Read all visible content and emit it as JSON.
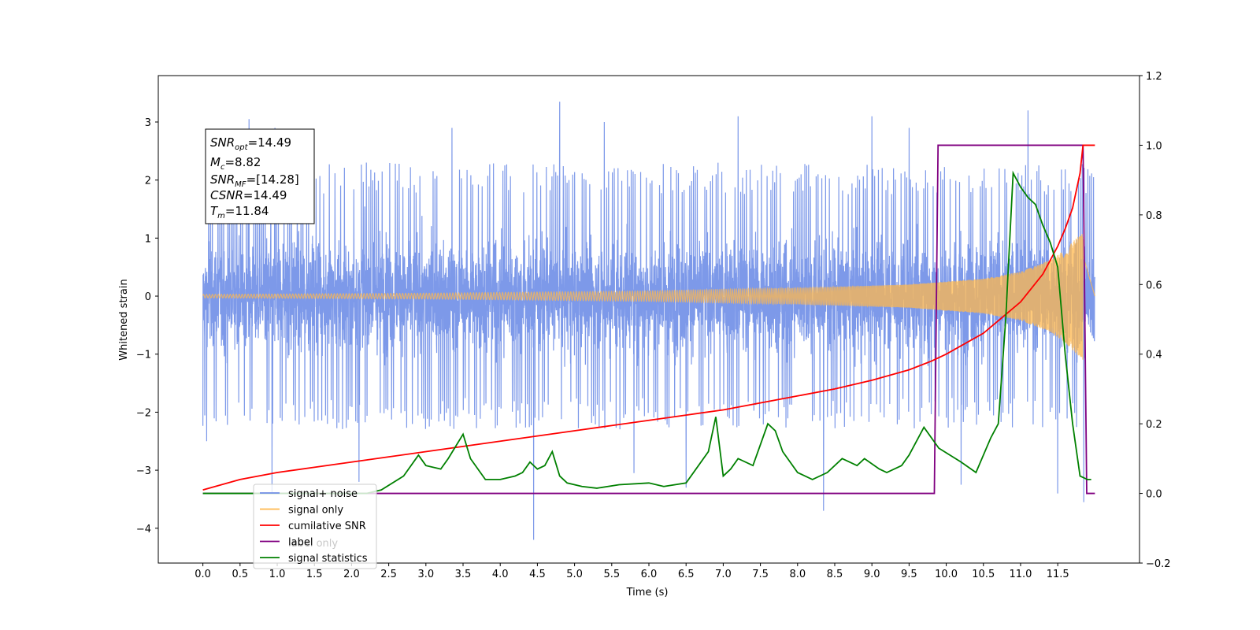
{
  "chart_data": {
    "type": "line",
    "xlabel": "Time (s)",
    "ylabel": "Whitened strain",
    "xlim": [
      -0.6,
      12.6
    ],
    "ylim": [
      -4.6,
      3.8
    ],
    "y2lim": [
      -0.2,
      1.2
    ],
    "x_ticks": [
      "0.0",
      "0.5",
      "1.0",
      "1.5",
      "2.0",
      "2.5",
      "3.0",
      "3.5",
      "4.0",
      "4.5",
      "5.0",
      "5.5",
      "6.0",
      "6.5",
      "7.0",
      "7.5",
      "8.0",
      "8.5",
      "9.0",
      "9.5",
      "10.0",
      "10.5",
      "11.0",
      "11.5"
    ],
    "y_ticks": [
      "3",
      "2",
      "1",
      "0",
      "−1",
      "−2",
      "−3",
      "−4"
    ],
    "y2_ticks": [
      "1.2",
      "1.0",
      "0.8",
      "0.6",
      "0.4",
      "0.2",
      "0.0",
      "−0.2"
    ],
    "info_box": {
      "snr_opt": {
        "sym": "SNR",
        "sub": "opt",
        "value": "=14.49"
      },
      "mc": {
        "sym": "M",
        "sub": "c",
        "value": "=8.82"
      },
      "snr_mf": {
        "sym": "SNR",
        "sub": "MF",
        "value": "=[14.28]"
      },
      "csnr": {
        "sym": "CSNR",
        "sub": "",
        "value": "=14.49"
      },
      "tm": {
        "sym": "T",
        "sub": "m",
        "value": "=11.84"
      }
    },
    "legend": {
      "placement": "lower-left",
      "entries": [
        {
          "label": "signal+ noise",
          "color": "#6f8ce6"
        },
        {
          "label": "signal only",
          "color": "#ffb84d"
        },
        {
          "label": "cumilative SNR",
          "color": "#ff0000"
        },
        {
          "label": "label",
          "color": "#800080"
        },
        {
          "label": "signal statistics",
          "color": "#008000"
        }
      ],
      "hidden_label": "label only"
    },
    "series": [
      {
        "name": "signal+ noise",
        "axis": "left",
        "color": "#7693e8",
        "x_range": [
          0.0,
          12.0
        ],
        "envelope_typical": 1.9,
        "peaks": [
          [
            0.05,
            -2.5
          ],
          [
            0.62,
            3.05
          ],
          [
            0.93,
            -3.4
          ],
          [
            0.97,
            2.9
          ],
          [
            2.1,
            -3.2
          ],
          [
            2.2,
            2.3
          ],
          [
            3.35,
            2.9
          ],
          [
            4.45,
            -4.2
          ],
          [
            4.8,
            3.35
          ],
          [
            5.4,
            3.0
          ],
          [
            5.8,
            -3.05
          ],
          [
            6.5,
            -3.3
          ],
          [
            7.2,
            3.1
          ],
          [
            8.35,
            -3.7
          ],
          [
            9.0,
            3.1
          ],
          [
            9.5,
            2.9
          ],
          [
            10.2,
            -3.25
          ],
          [
            11.1,
            3.2
          ],
          [
            11.5,
            -3.4
          ],
          [
            11.85,
            -3.55
          ]
        ]
      },
      {
        "name": "signal only",
        "axis": "left",
        "color": "#ffb84d",
        "x_range": [
          0.0,
          11.84
        ],
        "amplitude": [
          [
            0,
            0.03
          ],
          [
            3,
            0.05
          ],
          [
            6,
            0.09
          ],
          [
            8,
            0.14
          ],
          [
            9.5,
            0.2
          ],
          [
            10.5,
            0.3
          ],
          [
            11,
            0.42
          ],
          [
            11.4,
            0.62
          ],
          [
            11.6,
            0.8
          ],
          [
            11.75,
            1.0
          ],
          [
            11.84,
            1.1
          ]
        ]
      },
      {
        "name": "cumilative SNR",
        "axis": "right",
        "x": [
          0,
          0.5,
          1,
          1.5,
          2,
          2.5,
          3,
          3.5,
          4,
          4.5,
          5,
          5.5,
          6,
          6.5,
          7,
          7.5,
          8,
          8.5,
          9,
          9.5,
          9.8,
          10,
          10.5,
          11,
          11.3,
          11.5,
          11.6,
          11.7,
          11.8,
          11.84,
          12.0
        ],
        "y": [
          0.01,
          0.04,
          0.06,
          0.075,
          0.09,
          0.105,
          0.12,
          0.135,
          0.15,
          0.165,
          0.18,
          0.195,
          0.21,
          0.225,
          0.24,
          0.26,
          0.28,
          0.3,
          0.325,
          0.355,
          0.38,
          0.4,
          0.46,
          0.55,
          0.63,
          0.71,
          0.76,
          0.82,
          0.92,
          1.0,
          1.0
        ]
      },
      {
        "name": "label",
        "axis": "right",
        "x": [
          0.0,
          9.84,
          9.89,
          11.84,
          11.89,
          12.0
        ],
        "y": [
          0.0,
          0.0,
          1.0,
          1.0,
          0.0,
          0.0
        ]
      },
      {
        "name": "signal statistics",
        "axis": "right",
        "x": [
          0.0,
          2.2,
          2.4,
          2.7,
          2.9,
          3.0,
          3.2,
          3.3,
          3.5,
          3.6,
          3.8,
          4.0,
          4.2,
          4.3,
          4.4,
          4.5,
          4.6,
          4.7,
          4.8,
          4.9,
          5.1,
          5.3,
          5.6,
          6.0,
          6.2,
          6.5,
          6.8,
          6.9,
          7.0,
          7.1,
          7.2,
          7.4,
          7.6,
          7.7,
          7.8,
          7.9,
          8.0,
          8.2,
          8.4,
          8.6,
          8.8,
          8.9,
          9.1,
          9.2,
          9.4,
          9.5,
          9.7,
          9.9,
          10.2,
          10.4,
          10.6,
          10.7,
          10.8,
          10.9,
          11.0,
          11.1,
          11.2,
          11.3,
          11.4,
          11.5,
          11.6,
          11.7,
          11.8,
          11.9,
          11.95
        ],
        "y": [
          0.0,
          0.0,
          0.01,
          0.05,
          0.11,
          0.08,
          0.07,
          0.1,
          0.17,
          0.1,
          0.04,
          0.04,
          0.05,
          0.06,
          0.09,
          0.07,
          0.08,
          0.12,
          0.05,
          0.03,
          0.02,
          0.015,
          0.025,
          0.03,
          0.02,
          0.03,
          0.12,
          0.22,
          0.05,
          0.07,
          0.1,
          0.08,
          0.2,
          0.18,
          0.12,
          0.09,
          0.06,
          0.04,
          0.06,
          0.1,
          0.08,
          0.1,
          0.07,
          0.06,
          0.08,
          0.11,
          0.19,
          0.13,
          0.09,
          0.06,
          0.16,
          0.2,
          0.5,
          0.92,
          0.88,
          0.85,
          0.83,
          0.77,
          0.72,
          0.65,
          0.4,
          0.2,
          0.05,
          0.04,
          0.04
        ]
      }
    ]
  }
}
